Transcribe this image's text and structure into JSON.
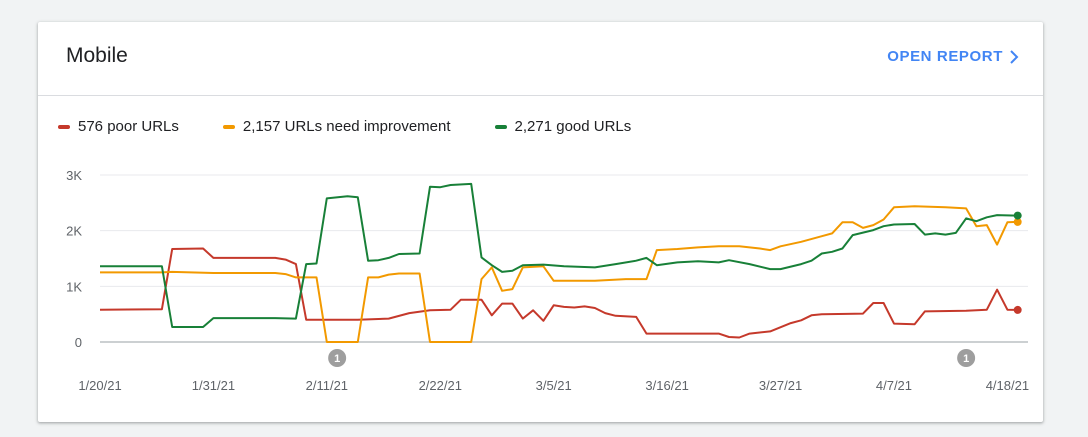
{
  "card": {
    "title": "Mobile",
    "open_report_label": "OPEN REPORT"
  },
  "colors": {
    "poor": "#c5392b",
    "needs": "#f29900",
    "good": "#188038",
    "axis": "#9aa0a6",
    "grid": "#e8eaed",
    "annotation": "#9e9e9e"
  },
  "chart_data": {
    "type": "line",
    "legend_position": "top-left",
    "grid": true,
    "ylim": [
      0,
      3000
    ],
    "yticks": [
      {
        "value": 0,
        "label": "0"
      },
      {
        "value": 1000,
        "label": "1K"
      },
      {
        "value": 2000,
        "label": "2K"
      },
      {
        "value": 3000,
        "label": "3K"
      }
    ],
    "xlim": [
      "2021-01-20",
      "2021-04-20"
    ],
    "xticks": [
      {
        "date": "2021-01-20",
        "label": "1/20/21"
      },
      {
        "date": "2021-01-31",
        "label": "1/31/21"
      },
      {
        "date": "2021-02-11",
        "label": "2/11/21"
      },
      {
        "date": "2021-02-22",
        "label": "2/22/21"
      },
      {
        "date": "2021-03-05",
        "label": "3/5/21"
      },
      {
        "date": "2021-03-16",
        "label": "3/16/21"
      },
      {
        "date": "2021-03-27",
        "label": "3/27/21"
      },
      {
        "date": "2021-04-07",
        "label": "4/7/21"
      },
      {
        "date": "2021-04-18",
        "label": "4/18/21"
      }
    ],
    "annotations": [
      {
        "date": "2021-02-12",
        "label": "1"
      },
      {
        "date": "2021-04-14",
        "label": "1"
      }
    ],
    "series": [
      {
        "key": "poor",
        "name": "576 poor URLs",
        "color": "#c5392b",
        "points": [
          [
            "2021-01-20",
            580
          ],
          [
            "2021-01-26",
            590
          ],
          [
            "2021-01-27",
            1670
          ],
          [
            "2021-01-30",
            1680
          ],
          [
            "2021-01-31",
            1510
          ],
          [
            "2021-02-06",
            1510
          ],
          [
            "2021-02-07",
            1480
          ],
          [
            "2021-02-08",
            1400
          ],
          [
            "2021-02-09",
            400
          ],
          [
            "2021-02-14",
            400
          ],
          [
            "2021-02-17",
            420
          ],
          [
            "2021-02-19",
            520
          ],
          [
            "2021-02-21",
            570
          ],
          [
            "2021-02-23",
            580
          ],
          [
            "2021-02-24",
            760
          ],
          [
            "2021-02-26",
            760
          ],
          [
            "2021-02-27",
            480
          ],
          [
            "2021-02-28",
            690
          ],
          [
            "2021-03-01",
            690
          ],
          [
            "2021-03-02",
            420
          ],
          [
            "2021-03-03",
            570
          ],
          [
            "2021-03-04",
            380
          ],
          [
            "2021-03-05",
            660
          ],
          [
            "2021-03-06",
            630
          ],
          [
            "2021-03-07",
            620
          ],
          [
            "2021-03-08",
            640
          ],
          [
            "2021-03-09",
            610
          ],
          [
            "2021-03-10",
            520
          ],
          [
            "2021-03-11",
            470
          ],
          [
            "2021-03-13",
            450
          ],
          [
            "2021-03-14",
            150
          ],
          [
            "2021-03-21",
            150
          ],
          [
            "2021-03-22",
            90
          ],
          [
            "2021-03-23",
            80
          ],
          [
            "2021-03-24",
            150
          ],
          [
            "2021-03-26",
            190
          ],
          [
            "2021-03-28",
            340
          ],
          [
            "2021-03-29",
            390
          ],
          [
            "2021-03-30",
            480
          ],
          [
            "2021-03-31",
            500
          ],
          [
            "2021-04-04",
            510
          ],
          [
            "2021-04-05",
            700
          ],
          [
            "2021-04-06",
            700
          ],
          [
            "2021-04-07",
            330
          ],
          [
            "2021-04-09",
            320
          ],
          [
            "2021-04-10",
            550
          ],
          [
            "2021-04-14",
            560
          ],
          [
            "2021-04-16",
            580
          ],
          [
            "2021-04-17",
            940
          ],
          [
            "2021-04-18",
            580
          ],
          [
            "2021-04-19",
            576
          ]
        ]
      },
      {
        "key": "needs",
        "name": "2,157 URLs need improvement",
        "color": "#f29900",
        "points": [
          [
            "2021-01-20",
            1250
          ],
          [
            "2021-01-26",
            1250
          ],
          [
            "2021-01-27",
            1260
          ],
          [
            "2021-01-31",
            1240
          ],
          [
            "2021-02-06",
            1240
          ],
          [
            "2021-02-07",
            1220
          ],
          [
            "2021-02-08",
            1160
          ],
          [
            "2021-02-10",
            1160
          ],
          [
            "2021-02-11",
            0
          ],
          [
            "2021-02-14",
            0
          ],
          [
            "2021-02-15",
            1160
          ],
          [
            "2021-02-16",
            1160
          ],
          [
            "2021-02-17",
            1210
          ],
          [
            "2021-02-18",
            1230
          ],
          [
            "2021-02-20",
            1230
          ],
          [
            "2021-02-21",
            0
          ],
          [
            "2021-02-25",
            0
          ],
          [
            "2021-02-26",
            1130
          ],
          [
            "2021-02-27",
            1340
          ],
          [
            "2021-02-28",
            920
          ],
          [
            "2021-03-01",
            950
          ],
          [
            "2021-03-02",
            1340
          ],
          [
            "2021-03-04",
            1360
          ],
          [
            "2021-03-05",
            1100
          ],
          [
            "2021-03-09",
            1100
          ],
          [
            "2021-03-12",
            1130
          ],
          [
            "2021-03-14",
            1130
          ],
          [
            "2021-03-15",
            1650
          ],
          [
            "2021-03-17",
            1670
          ],
          [
            "2021-03-19",
            1700
          ],
          [
            "2021-03-21",
            1720
          ],
          [
            "2021-03-23",
            1720
          ],
          [
            "2021-03-25",
            1680
          ],
          [
            "2021-03-26",
            1650
          ],
          [
            "2021-03-27",
            1720
          ],
          [
            "2021-03-29",
            1800
          ],
          [
            "2021-03-31",
            1900
          ],
          [
            "2021-04-01",
            1950
          ],
          [
            "2021-04-02",
            2150
          ],
          [
            "2021-04-03",
            2150
          ],
          [
            "2021-04-04",
            2050
          ],
          [
            "2021-04-05",
            2100
          ],
          [
            "2021-04-06",
            2200
          ],
          [
            "2021-04-07",
            2420
          ],
          [
            "2021-04-09",
            2440
          ],
          [
            "2021-04-12",
            2420
          ],
          [
            "2021-04-14",
            2400
          ],
          [
            "2021-04-15",
            2080
          ],
          [
            "2021-04-16",
            2100
          ],
          [
            "2021-04-17",
            1750
          ],
          [
            "2021-04-18",
            2150
          ],
          [
            "2021-04-19",
            2157
          ]
        ]
      },
      {
        "key": "good",
        "name": "2,271 good URLs",
        "color": "#188038",
        "points": [
          [
            "2021-01-20",
            1360
          ],
          [
            "2021-01-26",
            1360
          ],
          [
            "2021-01-27",
            270
          ],
          [
            "2021-01-30",
            270
          ],
          [
            "2021-01-31",
            430
          ],
          [
            "2021-02-06",
            430
          ],
          [
            "2021-02-08",
            420
          ],
          [
            "2021-02-09",
            1400
          ],
          [
            "2021-02-10",
            1410
          ],
          [
            "2021-02-11",
            2580
          ],
          [
            "2021-02-13",
            2620
          ],
          [
            "2021-02-14",
            2600
          ],
          [
            "2021-02-15",
            1460
          ],
          [
            "2021-02-16",
            1470
          ],
          [
            "2021-02-17",
            1510
          ],
          [
            "2021-02-18",
            1580
          ],
          [
            "2021-02-20",
            1590
          ],
          [
            "2021-02-21",
            2790
          ],
          [
            "2021-02-22",
            2780
          ],
          [
            "2021-02-23",
            2820
          ],
          [
            "2021-02-25",
            2840
          ],
          [
            "2021-02-26",
            1520
          ],
          [
            "2021-02-27",
            1380
          ],
          [
            "2021-02-28",
            1260
          ],
          [
            "2021-03-01",
            1280
          ],
          [
            "2021-03-02",
            1380
          ],
          [
            "2021-03-04",
            1390
          ],
          [
            "2021-03-06",
            1360
          ],
          [
            "2021-03-09",
            1340
          ],
          [
            "2021-03-11",
            1400
          ],
          [
            "2021-03-13",
            1460
          ],
          [
            "2021-03-14",
            1510
          ],
          [
            "2021-03-15",
            1380
          ],
          [
            "2021-03-17",
            1430
          ],
          [
            "2021-03-19",
            1450
          ],
          [
            "2021-03-21",
            1430
          ],
          [
            "2021-03-22",
            1470
          ],
          [
            "2021-03-24",
            1400
          ],
          [
            "2021-03-26",
            1310
          ],
          [
            "2021-03-27",
            1310
          ],
          [
            "2021-03-29",
            1400
          ],
          [
            "2021-03-30",
            1460
          ],
          [
            "2021-03-31",
            1590
          ],
          [
            "2021-04-01",
            1620
          ],
          [
            "2021-04-02",
            1680
          ],
          [
            "2021-04-03",
            1920
          ],
          [
            "2021-04-05",
            2010
          ],
          [
            "2021-04-06",
            2080
          ],
          [
            "2021-04-07",
            2110
          ],
          [
            "2021-04-09",
            2120
          ],
          [
            "2021-04-10",
            1930
          ],
          [
            "2021-04-11",
            1950
          ],
          [
            "2021-04-12",
            1930
          ],
          [
            "2021-04-13",
            1960
          ],
          [
            "2021-04-14",
            2220
          ],
          [
            "2021-04-15",
            2170
          ],
          [
            "2021-04-16",
            2240
          ],
          [
            "2021-04-17",
            2280
          ],
          [
            "2021-04-19",
            2271
          ]
        ]
      }
    ]
  }
}
